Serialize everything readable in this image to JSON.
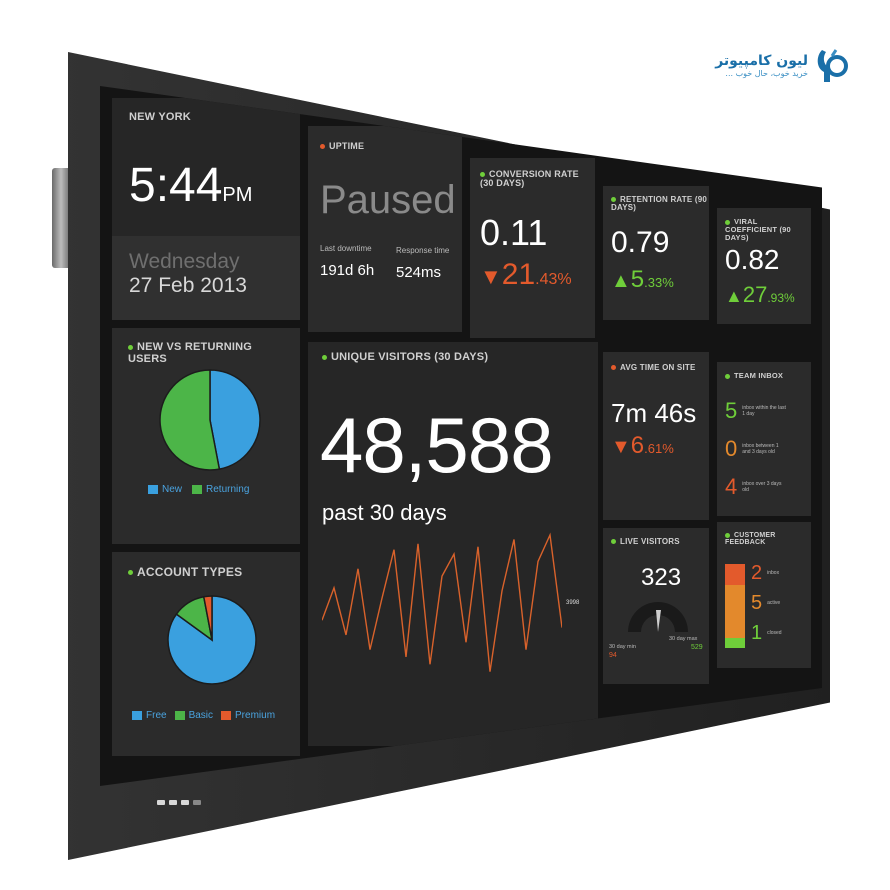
{
  "brand": {
    "name": "لیون کامپیوتر",
    "tagline": "خرید خوب، حال خوب ..."
  },
  "dashboard": {
    "clock": {
      "city": "NEW YORK",
      "time": "5:44",
      "ampm": "PM",
      "weekday": "Wednesday",
      "date": "27 Feb 2013"
    },
    "uptime": {
      "title": "UPTIME",
      "status": "Paused",
      "downtime_label": "Last downtime",
      "downtime_value": "191d 6h",
      "response_label": "Response time",
      "response_value": "524ms"
    },
    "conversion": {
      "title": "CONVERSION RATE (30 DAYS)",
      "value": "0.11",
      "change_icon": "down-triangle",
      "change_int": "21",
      "change_dec": ".43%",
      "color": "#e35a2c"
    },
    "retention": {
      "title": "RETENTION RATE (90 DAYS)",
      "value": "0.79",
      "change_icon": "up-triangle",
      "change_int": "5",
      "change_dec": ".33%",
      "color": "#6fce3a"
    },
    "viral": {
      "title": "VIRAL COEFFICIENT (90 DAYS)",
      "value": "0.82",
      "change_icon": "up-triangle",
      "change_int": "27",
      "change_dec": ".93%",
      "color": "#6fce3a"
    },
    "new_vs_returning": {
      "title": "NEW VS RETURNING USERS",
      "legend": [
        "New",
        "Returning"
      ],
      "colors": [
        "#3aa0df",
        "#4cb548"
      ],
      "values": [
        47,
        53
      ]
    },
    "visitors": {
      "title": "UNIQUE VISITORS (30 DAYS)",
      "value": "48,588",
      "caption": "past 30 days",
      "spark_label": "3998",
      "spark": [
        40,
        62,
        30,
        75,
        20,
        55,
        88,
        15,
        92,
        10,
        70,
        85,
        25,
        90,
        5,
        60,
        95,
        20,
        80,
        98,
        35
      ]
    },
    "avg_time": {
      "title": "AVG TIME ON SITE",
      "value": "7m 46s",
      "change_icon": "down-triangle",
      "change_int": "6",
      "change_dec": ".61%",
      "color": "#e35a2c"
    },
    "team_inbox": {
      "title": "TEAM INBOX",
      "rows": [
        {
          "count": "5",
          "label": "inbox within the last 1 day",
          "color": "#6fce3a"
        },
        {
          "count": "0",
          "label": "inbox between 1 and 3 days old",
          "color": "#e3892c"
        },
        {
          "count": "4",
          "label": "inbox over 3 days old",
          "color": "#e35a2c"
        }
      ]
    },
    "account_types": {
      "title": "ACCOUNT TYPES",
      "legend": [
        "Free",
        "Basic",
        "Premium"
      ],
      "colors": [
        "#3aa0df",
        "#4cb548",
        "#e35a2c"
      ],
      "values": [
        85,
        12,
        3
      ]
    },
    "live_visitors": {
      "title": "LIVE VISITORS",
      "value": "323",
      "min_label": "30 day min",
      "min_value": "94",
      "max_label": "30 day max",
      "max_value": "529"
    },
    "feedback": {
      "title": "CUSTOMER FEEDBACK",
      "rows": [
        {
          "count": "2",
          "label": "inbox",
          "color": "#e35a2c"
        },
        {
          "count": "5",
          "label": "active",
          "color": "#e3892c"
        },
        {
          "count": "1",
          "label": "closed",
          "color": "#6fce3a"
        }
      ]
    }
  }
}
